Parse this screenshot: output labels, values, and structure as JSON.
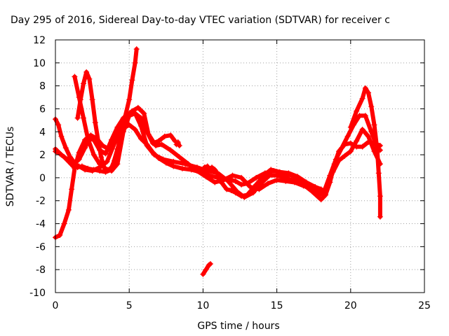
{
  "chart_data": {
    "type": "scatter",
    "title": "Day 295 of 2016, Sidereal Day-to-day VTEC variation (SDTVAR) for receiver c",
    "xlabel": "GPS time / hours",
    "ylabel": "SDTVAR / TECUs",
    "xlim": [
      0,
      25
    ],
    "ylim": [
      -10,
      12
    ],
    "x_ticks": [
      "0",
      "5",
      "10",
      "15",
      "20",
      "25"
    ],
    "y_ticks": [
      "12",
      "10",
      "8",
      "6",
      "4",
      "2",
      "0",
      "-2",
      "-4",
      "-6",
      "-8",
      "-10"
    ],
    "grid": true,
    "marker": "plus",
    "color": "#ff0000",
    "series": [
      {
        "points": [
          [
            0.0,
            -5.2
          ],
          [
            0.3,
            -5.0
          ],
          [
            0.6,
            -4.0
          ],
          [
            0.9,
            -2.8
          ],
          [
            1.1,
            -1.0
          ],
          [
            1.3,
            0.8
          ],
          [
            1.6,
            2.2
          ],
          [
            2.0,
            3.3
          ],
          [
            2.4,
            3.7
          ],
          [
            2.8,
            3.4
          ],
          [
            3.2,
            2.8
          ],
          [
            3.6,
            2.5
          ],
          [
            4.0,
            3.0
          ],
          [
            4.3,
            3.8
          ],
          [
            4.7,
            5.2
          ],
          [
            5.0,
            6.8
          ],
          [
            5.2,
            8.5
          ],
          [
            5.4,
            10.0
          ],
          [
            5.5,
            11.2
          ]
        ]
      },
      {
        "points": [
          [
            0.0,
            5.1
          ],
          [
            0.2,
            4.6
          ],
          [
            0.4,
            3.6
          ],
          [
            0.7,
            2.6
          ],
          [
            1.0,
            1.8
          ],
          [
            1.3,
            1.3
          ],
          [
            1.6,
            1.6
          ],
          [
            2.0,
            2.6
          ],
          [
            2.3,
            3.4
          ],
          [
            2.6,
            3.3
          ],
          [
            3.0,
            2.4
          ],
          [
            3.4,
            2.1
          ],
          [
            3.8,
            3.3
          ],
          [
            4.2,
            4.4
          ],
          [
            4.6,
            5.2
          ],
          [
            5.0,
            5.5
          ],
          [
            5.4,
            5.6
          ],
          [
            5.8,
            4.5
          ],
          [
            6.2,
            2.8
          ],
          [
            6.7,
            2.0
          ],
          [
            7.3,
            1.6
          ],
          [
            8.0,
            1.4
          ],
          [
            8.8,
            1.2
          ],
          [
            9.6,
            0.9
          ],
          [
            10.3,
            0.6
          ],
          [
            11.0,
            0.4
          ],
          [
            11.7,
            -0.3
          ],
          [
            12.3,
            -1.2
          ],
          [
            12.8,
            -1.7
          ],
          [
            13.4,
            -1.3
          ],
          [
            14.0,
            -0.4
          ],
          [
            14.5,
            0.2
          ],
          [
            15.0,
            0.2
          ],
          [
            15.6,
            0.0
          ],
          [
            16.2,
            -0.3
          ],
          [
            16.8,
            -0.6
          ],
          [
            17.4,
            -1.2
          ],
          [
            18.0,
            -1.9
          ],
          [
            18.3,
            -1.5
          ],
          [
            18.6,
            -0.4
          ],
          [
            18.9,
            1.2
          ],
          [
            19.2,
            2.3
          ],
          [
            19.6,
            2.9
          ],
          [
            20.0,
            3.0
          ],
          [
            20.4,
            2.7
          ],
          [
            20.8,
            2.7
          ],
          [
            21.2,
            3.1
          ],
          [
            21.6,
            3.0
          ],
          [
            22.0,
            2.8
          ]
        ]
      },
      {
        "points": [
          [
            0.0,
            2.5
          ],
          [
            0.4,
            2.0
          ],
          [
            0.8,
            1.6
          ],
          [
            1.2,
            1.2
          ],
          [
            1.6,
            1.0
          ],
          [
            2.0,
            0.7
          ],
          [
            2.5,
            0.6
          ],
          [
            3.0,
            0.9
          ],
          [
            3.5,
            1.4
          ],
          [
            4.0,
            3.0
          ],
          [
            4.4,
            4.4
          ],
          [
            4.8,
            5.4
          ],
          [
            5.2,
            5.8
          ],
          [
            5.6,
            6.1
          ],
          [
            6.0,
            5.6
          ],
          [
            6.3,
            3.8
          ],
          [
            6.8,
            2.8
          ],
          [
            7.2,
            2.9
          ],
          [
            7.8,
            2.4
          ],
          [
            8.4,
            1.8
          ],
          [
            9.0,
            1.2
          ],
          [
            9.6,
            0.6
          ],
          [
            10.2,
            0.1
          ],
          [
            10.8,
            -0.4
          ],
          [
            11.4,
            -0.2
          ],
          [
            12.0,
            0.2
          ],
          [
            12.6,
            0.0
          ],
          [
            13.2,
            -0.8
          ],
          [
            13.8,
            -1.0
          ],
          [
            14.4,
            -0.5
          ],
          [
            15.0,
            -0.2
          ],
          [
            15.6,
            -0.3
          ],
          [
            16.2,
            -0.4
          ],
          [
            16.8,
            -0.7
          ],
          [
            17.4,
            -1.0
          ],
          [
            18.0,
            -1.3
          ],
          [
            18.4,
            -0.8
          ],
          [
            18.8,
            0.5
          ],
          [
            19.2,
            1.5
          ],
          [
            19.6,
            1.9
          ],
          [
            20.0,
            2.3
          ],
          [
            20.4,
            3.2
          ],
          [
            20.8,
            4.2
          ],
          [
            21.2,
            3.6
          ],
          [
            21.6,
            2.3
          ],
          [
            22.0,
            1.2
          ]
        ]
      },
      {
        "points": [
          [
            0.0,
            2.3
          ],
          [
            0.3,
            2.1
          ],
          [
            0.6,
            1.8
          ],
          [
            0.9,
            1.4
          ],
          [
            1.2,
            1.0
          ],
          [
            1.5,
            0.9
          ],
          [
            1.8,
            1.0
          ],
          [
            2.2,
            0.8
          ],
          [
            2.6,
            0.7
          ],
          [
            3.0,
            0.6
          ],
          [
            3.4,
            0.5
          ],
          [
            3.8,
            0.7
          ],
          [
            4.2,
            2.5
          ],
          [
            4.6,
            4.3
          ],
          [
            5.0,
            4.6
          ],
          [
            5.4,
            4.2
          ],
          [
            5.8,
            3.4
          ],
          [
            6.2,
            2.9
          ],
          [
            6.6,
            2.2
          ],
          [
            7.0,
            1.7
          ],
          [
            7.5,
            1.3
          ],
          [
            8.0,
            1.0
          ],
          [
            8.6,
            0.8
          ],
          [
            9.2,
            0.7
          ],
          [
            9.8,
            0.5
          ],
          [
            10.4,
            0.2
          ],
          [
            11.0,
            0.0
          ],
          [
            11.6,
            -0.1
          ],
          [
            12.2,
            -0.3
          ],
          [
            12.6,
            -0.6
          ],
          [
            13.0,
            -0.5
          ],
          [
            13.6,
            0.0
          ],
          [
            14.2,
            0.4
          ],
          [
            14.8,
            0.6
          ],
          [
            15.4,
            0.4
          ],
          [
            16.0,
            0.2
          ],
          [
            16.6,
            -0.2
          ],
          [
            17.2,
            -0.8
          ],
          [
            17.8,
            -1.6
          ],
          [
            18.2,
            -1.2
          ],
          [
            18.6,
            0.2
          ],
          [
            19.0,
            1.6
          ],
          [
            19.4,
            2.6
          ],
          [
            19.8,
            3.6
          ],
          [
            20.2,
            4.6
          ],
          [
            20.6,
            5.4
          ],
          [
            21.0,
            5.4
          ],
          [
            21.4,
            4.0
          ],
          [
            21.8,
            2.6
          ],
          [
            22.0,
            2.4
          ]
        ]
      },
      {
        "points": [
          [
            1.3,
            8.8
          ],
          [
            1.6,
            7.0
          ],
          [
            1.9,
            5.2
          ],
          [
            2.2,
            3.4
          ],
          [
            2.6,
            2.0
          ],
          [
            3.0,
            1.2
          ],
          [
            3.4,
            0.8
          ],
          [
            3.8,
            0.6
          ],
          [
            4.2,
            1.2
          ],
          [
            4.6,
            4.0
          ],
          [
            5.0,
            5.4
          ],
          [
            5.4,
            5.6
          ],
          [
            5.8,
            5.2
          ],
          [
            6.2,
            4.0
          ],
          [
            6.6,
            3.0
          ],
          [
            7.0,
            3.2
          ],
          [
            7.4,
            3.6
          ],
          [
            7.8,
            3.7
          ],
          [
            8.1,
            3.2
          ]
        ]
      },
      {
        "points": [
          [
            1.5,
            5.2
          ],
          [
            1.7,
            6.8
          ],
          [
            1.9,
            8.2
          ],
          [
            2.1,
            9.2
          ],
          [
            2.3,
            8.6
          ],
          [
            2.5,
            6.8
          ],
          [
            2.7,
            4.8
          ],
          [
            2.9,
            3.2
          ],
          [
            3.1,
            1.8
          ],
          [
            3.3,
            0.9
          ],
          [
            3.5,
            0.6
          ],
          [
            3.8,
            0.9
          ],
          [
            4.0,
            1.5
          ]
        ]
      },
      {
        "points": [
          [
            9.9,
            0.5
          ],
          [
            10.1,
            0.9
          ],
          [
            10.3,
            1.0
          ],
          [
            10.4,
            0.6
          ],
          [
            10.6,
            0.9
          ],
          [
            10.8,
            0.7
          ],
          [
            11.0,
            0.3
          ],
          [
            11.3,
            -0.5
          ],
          [
            11.6,
            -1.0
          ],
          [
            11.9,
            -1.1
          ],
          [
            12.2,
            -1.3
          ],
          [
            12.6,
            -1.6
          ],
          [
            13.0,
            -1.5
          ],
          [
            13.6,
            -0.6
          ],
          [
            14.2,
            0.3
          ],
          [
            14.6,
            0.7
          ],
          [
            15.2,
            0.5
          ],
          [
            15.8,
            0.4
          ],
          [
            16.4,
            0.1
          ],
          [
            17.0,
            -0.4
          ],
          [
            17.6,
            -0.8
          ],
          [
            18.0,
            -1.0
          ]
        ]
      },
      {
        "points": [
          [
            20.0,
            4.4
          ],
          [
            20.4,
            5.8
          ],
          [
            20.8,
            6.9
          ],
          [
            21.0,
            7.8
          ],
          [
            21.2,
            7.4
          ],
          [
            21.4,
            6.2
          ],
          [
            21.6,
            4.6
          ],
          [
            21.8,
            2.4
          ],
          [
            21.9,
            0.4
          ],
          [
            22.0,
            -1.6
          ],
          [
            22.0,
            -3.4
          ]
        ]
      },
      {
        "points": [
          [
            10.0,
            -8.4
          ],
          [
            10.2,
            -8.0
          ],
          [
            10.4,
            -7.6
          ],
          [
            10.5,
            -7.5
          ]
        ]
      },
      {
        "points": [
          [
            8.2,
            2.9
          ],
          [
            8.3,
            3.1
          ],
          [
            8.4,
            2.8
          ]
        ]
      }
    ]
  }
}
